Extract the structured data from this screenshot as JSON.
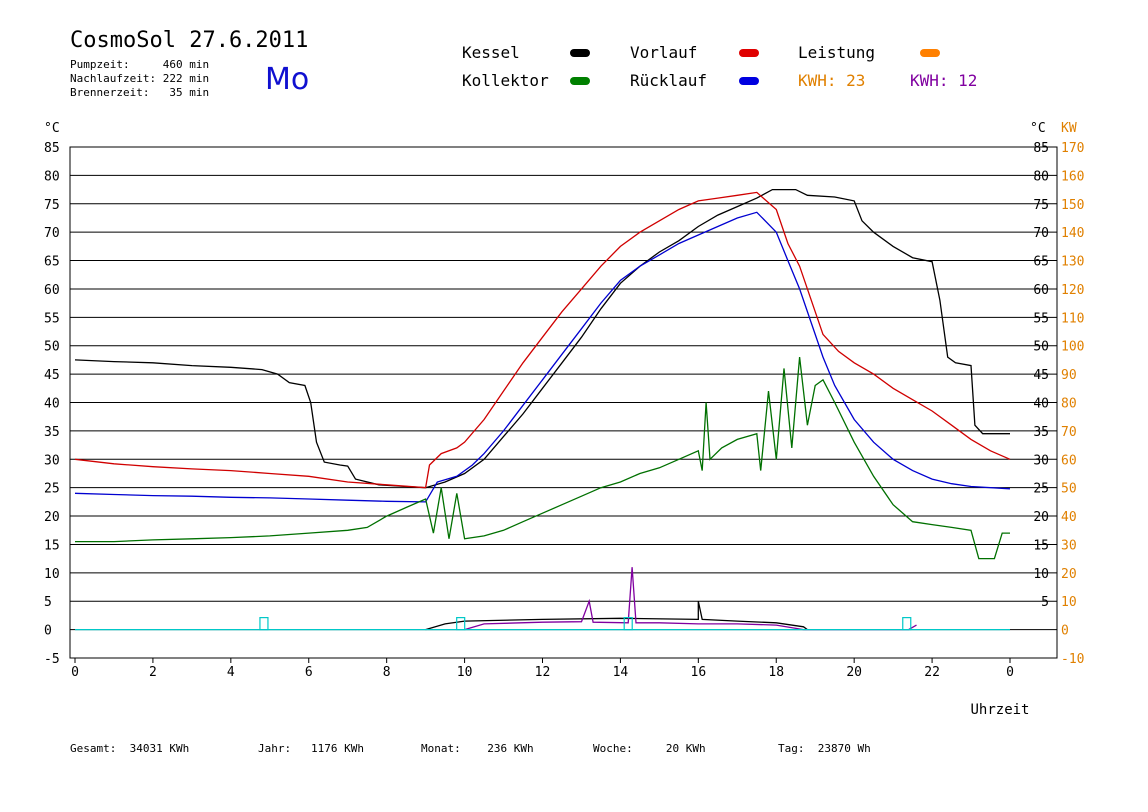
{
  "header": {
    "title": "CosmoSol 27.6.2011",
    "day": "Mo",
    "pumpzeit": "Pumpzeit:     460 min",
    "nachlaufzeit": "Nachlaufzeit: 222 min",
    "brennerzeit": "Brennerzeit:   35 min"
  },
  "legend": {
    "kessel": {
      "label": "Kessel",
      "color": "#000000"
    },
    "kollektor": {
      "label": "Kollektor",
      "color": "#008000"
    },
    "vorlauf": {
      "label": "Vorlauf",
      "color": "#e00000"
    },
    "ruecklauf": {
      "label": "Rücklauf",
      "color": "#0000e0"
    },
    "leistung": {
      "label": "Leistung",
      "color": "#ff8000"
    },
    "kwh1": {
      "label": "KWH: 23",
      "color": "#e08000"
    },
    "kwh2": {
      "label": "KWH: 12",
      "color": "#8000a0"
    }
  },
  "footer": {
    "gesamt": "Gesamt:  34031 KWh",
    "jahr": "Jahr:   1176 KWh",
    "monat": "Monat:    236 KWh",
    "woche": "Woche:     20 KWh",
    "tag": "Tag:  23870 Wh"
  },
  "chart_data": {
    "type": "line",
    "xlabel": "Uhrzeit",
    "ylabel_left": "°C",
    "ylabel_right_c": "°C",
    "ylabel_right_kw": "KW",
    "xlim": [
      0,
      24
    ],
    "ylim": [
      -5,
      85
    ],
    "x_ticks": [
      "0",
      "2",
      "4",
      "6",
      "8",
      "10",
      "12",
      "14",
      "16",
      "18",
      "20",
      "22",
      "0"
    ],
    "y_ticks_left": [
      -5,
      0,
      5,
      10,
      15,
      20,
      25,
      30,
      35,
      40,
      45,
      50,
      55,
      60,
      65,
      70,
      75,
      80,
      85
    ],
    "y_ticks_right_c": [
      5,
      10,
      15,
      20,
      25,
      30,
      35,
      40,
      45,
      50,
      55,
      60,
      65,
      70,
      75,
      80,
      85
    ],
    "y_ticks_right_kw": [
      -10,
      0,
      10,
      20,
      30,
      40,
      50,
      60,
      70,
      80,
      90,
      100,
      110,
      120,
      130,
      140,
      150,
      160,
      170
    ],
    "grid": true,
    "series": [
      {
        "key": "kessel",
        "color": "#000000",
        "points": [
          [
            0,
            47.5
          ],
          [
            1,
            47.2
          ],
          [
            2,
            47
          ],
          [
            3,
            46.5
          ],
          [
            4,
            46.2
          ],
          [
            4.8,
            45.8
          ],
          [
            5.2,
            45
          ],
          [
            5.5,
            43.5
          ],
          [
            5.9,
            43
          ],
          [
            6.05,
            40
          ],
          [
            6.2,
            33
          ],
          [
            6.4,
            29.5
          ],
          [
            6.8,
            29
          ],
          [
            7.0,
            28.8
          ],
          [
            7.2,
            26.5
          ],
          [
            7.8,
            25.5
          ],
          [
            8.5,
            25.2
          ],
          [
            9.0,
            25
          ],
          [
            9.5,
            26
          ],
          [
            10.0,
            27.5
          ],
          [
            10.5,
            30
          ],
          [
            11,
            34
          ],
          [
            11.5,
            38
          ],
          [
            12,
            42.5
          ],
          [
            12.5,
            47
          ],
          [
            13,
            51.5
          ],
          [
            13.5,
            56.5
          ],
          [
            14,
            61
          ],
          [
            14.5,
            64
          ],
          [
            15,
            66.5
          ],
          [
            15.5,
            68.5
          ],
          [
            16,
            71
          ],
          [
            16.5,
            73
          ],
          [
            17,
            74.5
          ],
          [
            17.5,
            76
          ],
          [
            17.9,
            77.5
          ],
          [
            18.5,
            77.5
          ],
          [
            18.8,
            76.5
          ],
          [
            19.5,
            76.2
          ],
          [
            20,
            75.5
          ],
          [
            20.2,
            72
          ],
          [
            20.5,
            70
          ],
          [
            21,
            67.5
          ],
          [
            21.5,
            65.5
          ],
          [
            22,
            64.8
          ],
          [
            22.2,
            58
          ],
          [
            22.4,
            48
          ],
          [
            22.6,
            47
          ],
          [
            23.0,
            46.5
          ],
          [
            23.1,
            36
          ],
          [
            23.3,
            34.5
          ],
          [
            24,
            34.5
          ]
        ]
      },
      {
        "key": "vorlauf",
        "color": "#d00000",
        "points": [
          [
            0,
            30
          ],
          [
            1,
            29.2
          ],
          [
            2,
            28.7
          ],
          [
            3,
            28.3
          ],
          [
            4,
            28
          ],
          [
            5,
            27.5
          ],
          [
            6,
            27
          ],
          [
            7,
            26
          ],
          [
            8,
            25.5
          ],
          [
            9,
            25
          ],
          [
            9.1,
            29
          ],
          [
            9.4,
            31
          ],
          [
            9.8,
            32
          ],
          [
            10,
            33
          ],
          [
            10.5,
            37
          ],
          [
            11,
            42
          ],
          [
            11.5,
            47
          ],
          [
            12,
            51.5
          ],
          [
            12.5,
            56
          ],
          [
            13,
            60
          ],
          [
            13.5,
            64
          ],
          [
            14,
            67.5
          ],
          [
            14.5,
            70
          ],
          [
            15,
            72
          ],
          [
            15.5,
            74
          ],
          [
            16,
            75.5
          ],
          [
            16.5,
            76
          ],
          [
            17,
            76.5
          ],
          [
            17.5,
            77
          ],
          [
            18,
            74
          ],
          [
            18.3,
            68
          ],
          [
            18.6,
            64
          ],
          [
            18.9,
            58
          ],
          [
            19.2,
            52
          ],
          [
            19.6,
            49
          ],
          [
            20,
            47
          ],
          [
            20.5,
            45
          ],
          [
            21,
            42.5
          ],
          [
            21.5,
            40.5
          ],
          [
            22,
            38.5
          ],
          [
            22.5,
            36
          ],
          [
            23,
            33.5
          ],
          [
            23.5,
            31.5
          ],
          [
            24,
            30
          ]
        ]
      },
      {
        "key": "ruecklauf",
        "color": "#0000d0",
        "points": [
          [
            0,
            24
          ],
          [
            1,
            23.8
          ],
          [
            2,
            23.6
          ],
          [
            3,
            23.5
          ],
          [
            4,
            23.3
          ],
          [
            5,
            23.2
          ],
          [
            6,
            23
          ],
          [
            7,
            22.8
          ],
          [
            8,
            22.6
          ],
          [
            9,
            22.5
          ],
          [
            9.3,
            26
          ],
          [
            9.8,
            27
          ],
          [
            10.2,
            29
          ],
          [
            10.5,
            31
          ],
          [
            11,
            35
          ],
          [
            11.5,
            39.5
          ],
          [
            12,
            44
          ],
          [
            12.5,
            48.5
          ],
          [
            13,
            53
          ],
          [
            13.5,
            57.5
          ],
          [
            14,
            61.5
          ],
          [
            14.5,
            64
          ],
          [
            15,
            66
          ],
          [
            15.5,
            68
          ],
          [
            16,
            69.5
          ],
          [
            16.5,
            71
          ],
          [
            17,
            72.5
          ],
          [
            17.5,
            73.5
          ],
          [
            18,
            70
          ],
          [
            18.3,
            65
          ],
          [
            18.6,
            60
          ],
          [
            18.9,
            54
          ],
          [
            19.2,
            48
          ],
          [
            19.5,
            43
          ],
          [
            20,
            37
          ],
          [
            20.5,
            33
          ],
          [
            21,
            30
          ],
          [
            21.5,
            28
          ],
          [
            22,
            26.5
          ],
          [
            22.5,
            25.7
          ],
          [
            23,
            25.2
          ],
          [
            24,
            24.8
          ]
        ]
      },
      {
        "key": "kollektor",
        "color": "#007000",
        "points": [
          [
            0,
            15.5
          ],
          [
            1,
            15.5
          ],
          [
            2,
            15.8
          ],
          [
            3,
            16
          ],
          [
            4,
            16.2
          ],
          [
            5,
            16.5
          ],
          [
            6,
            17
          ],
          [
            7,
            17.5
          ],
          [
            7.5,
            18
          ],
          [
            8,
            20
          ],
          [
            8.5,
            21.5
          ],
          [
            9,
            23
          ],
          [
            9.2,
            17
          ],
          [
            9.4,
            25
          ],
          [
            9.6,
            16
          ],
          [
            9.8,
            24
          ],
          [
            10,
            16
          ],
          [
            10.5,
            16.5
          ],
          [
            11,
            17.5
          ],
          [
            11.5,
            19
          ],
          [
            12,
            20.5
          ],
          [
            12.5,
            22
          ],
          [
            13,
            23.5
          ],
          [
            13.5,
            25
          ],
          [
            14,
            26
          ],
          [
            14.5,
            27.5
          ],
          [
            15,
            28.5
          ],
          [
            15.5,
            30
          ],
          [
            16,
            31.5
          ],
          [
            16.1,
            28
          ],
          [
            16.2,
            40
          ],
          [
            16.3,
            30
          ],
          [
            16.6,
            32
          ],
          [
            17,
            33.5
          ],
          [
            17.5,
            34.5
          ],
          [
            17.6,
            28
          ],
          [
            17.8,
            42
          ],
          [
            18,
            30
          ],
          [
            18.2,
            46
          ],
          [
            18.4,
            32
          ],
          [
            18.6,
            48
          ],
          [
            18.8,
            36
          ],
          [
            19,
            43
          ],
          [
            19.2,
            44
          ],
          [
            19.5,
            40
          ],
          [
            20,
            33
          ],
          [
            20.5,
            27
          ],
          [
            21,
            22
          ],
          [
            21.5,
            19
          ],
          [
            22,
            18.5
          ],
          [
            22.5,
            18
          ],
          [
            23,
            17.5
          ],
          [
            23.2,
            12.5
          ],
          [
            23.6,
            12.5
          ],
          [
            23.8,
            17
          ],
          [
            24,
            17
          ]
        ]
      },
      {
        "key": "leistung_kessel",
        "color": "#000000",
        "points": [
          [
            9,
            0
          ],
          [
            9.5,
            1
          ],
          [
            10,
            1.5
          ],
          [
            12,
            1.8
          ],
          [
            14,
            2
          ],
          [
            16,
            1.8
          ],
          [
            16,
            5
          ],
          [
            16.1,
            1.8
          ],
          [
            17,
            1.5
          ],
          [
            18,
            1.2
          ],
          [
            18.7,
            0.5
          ],
          [
            18.8,
            0
          ]
        ]
      },
      {
        "key": "leistung_purple",
        "color": "#8000a0",
        "points": [
          [
            10,
            0
          ],
          [
            10.5,
            1
          ],
          [
            12,
            1.3
          ],
          [
            13,
            1.4
          ],
          [
            13.2,
            5
          ],
          [
            13.3,
            1.3
          ],
          [
            14.2,
            1.2
          ],
          [
            14.3,
            11
          ],
          [
            14.4,
            1.2
          ],
          [
            15,
            1.2
          ],
          [
            16,
            1
          ],
          [
            17,
            1
          ],
          [
            18,
            0.8
          ],
          [
            18.7,
            0
          ],
          [
            21.4,
            0
          ],
          [
            21.6,
            0.8
          ]
        ]
      },
      {
        "key": "nullinie",
        "color": "#00c8c8",
        "points": [
          [
            0,
            0
          ],
          [
            24,
            0
          ]
        ]
      }
    ]
  }
}
